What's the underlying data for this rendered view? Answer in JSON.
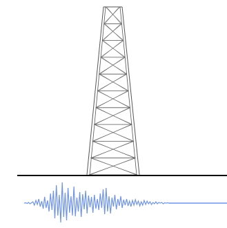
{
  "diagram": {
    "tower": {
      "panel_count": 10,
      "stroke_color": "#555555",
      "brace_color": "#666666"
    },
    "ground": {
      "color": "#000000"
    },
    "seismogram": {
      "color": "#6f94e8",
      "samples": [
        0,
        0.5,
        -0.5,
        1,
        -1,
        0.5,
        2,
        -3,
        4,
        -2,
        6,
        -5,
        3,
        -8,
        9,
        -7,
        4,
        -12,
        14,
        -10,
        18,
        -22,
        26,
        -18,
        12,
        -28,
        30,
        -20,
        15,
        -25,
        22,
        -14,
        10,
        -18,
        24,
        -19,
        8,
        -12,
        16,
        -20,
        13,
        -9,
        18,
        -15,
        11,
        -6,
        9,
        -14,
        12,
        -8,
        6,
        -10,
        14,
        -7,
        20,
        -16,
        22,
        -12,
        10,
        -15,
        8,
        -5,
        12,
        -9,
        6,
        -4,
        10,
        -7,
        5,
        -3,
        6,
        -4,
        3,
        -5,
        4,
        -3,
        5,
        -2,
        3,
        -4,
        2,
        -3,
        4,
        -2,
        3,
        -1,
        2,
        -2,
        1,
        -1,
        2,
        -1,
        1,
        0,
        1,
        -1,
        0.5,
        0,
        0.5,
        0
      ]
    }
  }
}
